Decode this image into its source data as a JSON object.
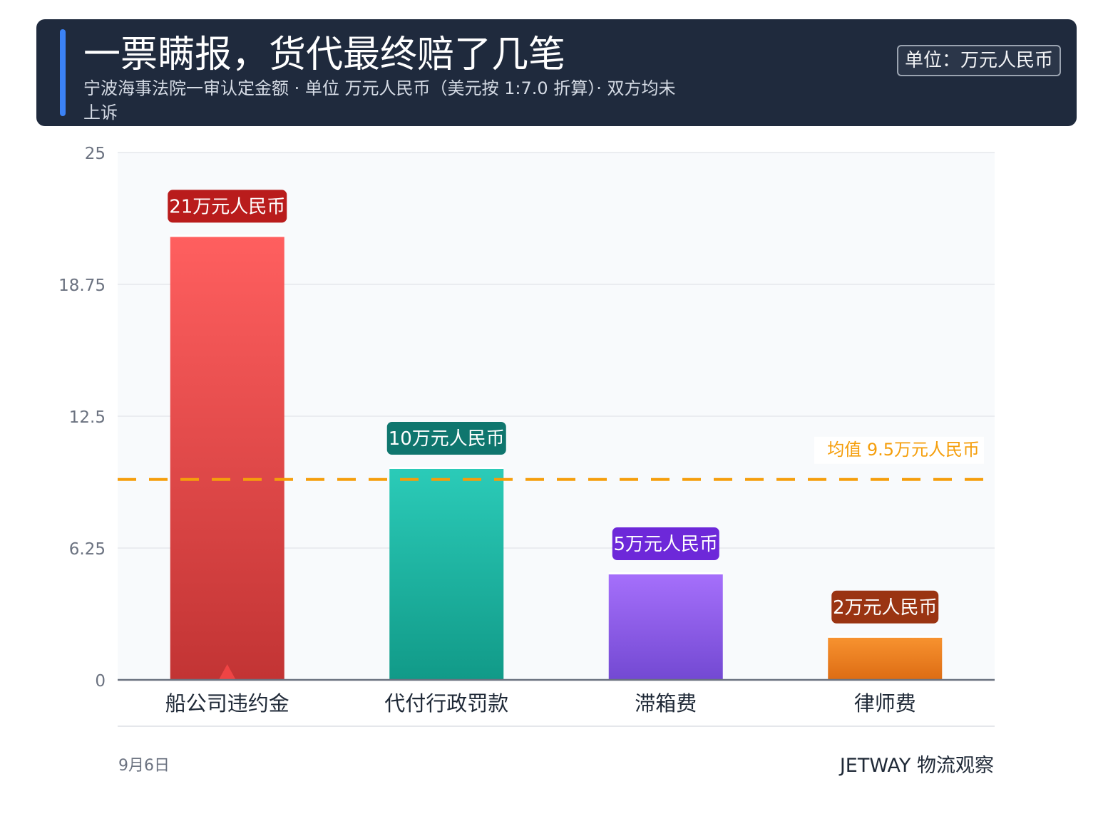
{
  "header": {
    "title": "一票瞒报，货代最终赔了几笔",
    "subtitle": "宁波海事法院一审认定金额 · 单位 万元人民币（美元按 1:7.0 折算）· 双方均未上诉",
    "unit_badge": "单位：万元人民币"
  },
  "chart_data": {
    "type": "bar",
    "categories": [
      "船公司违约金",
      "代付行政罚款",
      "滞箱费",
      "律师费"
    ],
    "values": [
      21,
      10,
      5,
      2
    ],
    "value_labels": [
      "21万元人民币",
      "10万元人民币",
      "5万元人民币",
      "2万元人民币"
    ],
    "ylim": [
      0,
      25
    ],
    "y_ticks": [
      0,
      6.25,
      12.5,
      18.75,
      25
    ],
    "y_tick_labels": [
      "0",
      "6.25",
      "12.5",
      "18.75",
      "25"
    ],
    "grid": true,
    "mean": 9.5,
    "mean_label": "均值 9.5万元人民币",
    "bar_colors": [
      [
        "#ff5f5f",
        "#c23434"
      ],
      [
        "#2bcbb8",
        "#119a88"
      ],
      [
        "#a56ffb",
        "#7349d2"
      ],
      [
        "#f7922f",
        "#dd6c14"
      ]
    ],
    "label_colors": [
      "#b91c1c",
      "#0f766e",
      "#6d28d9",
      "#9a3412"
    ],
    "mean_color": "#f59e0b",
    "highlight_category": "船公司违约金"
  },
  "footer": {
    "date": "9月6日",
    "brand": "JETWAY 物流观察"
  }
}
